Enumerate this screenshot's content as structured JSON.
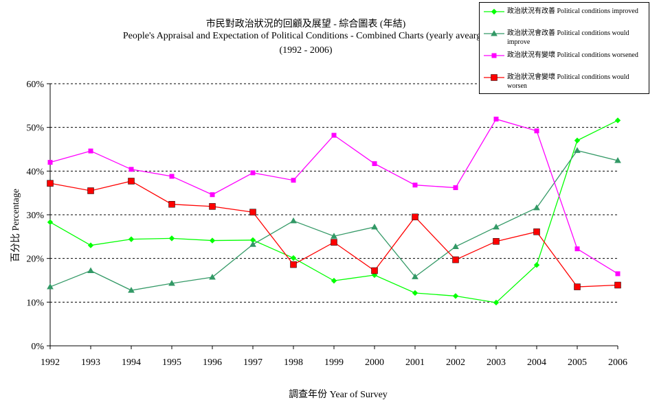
{
  "chart_data": {
    "type": "line",
    "title": "市民對政治狀況的回顧及展望 - 綜合圖表 (年結)",
    "subtitle": "People's Appraisal and Expectation of Political Conditions - Combined Charts  (yearly avearge)",
    "subtitle2": "(1992 - 2006)",
    "xlabel": "調查年份 Year of Survey",
    "ylabel": "百分比 Percentage",
    "x": [
      "1992",
      "1993",
      "1994",
      "1995",
      "1996",
      "1997",
      "1998",
      "1999",
      "2000",
      "2001",
      "2002",
      "2003",
      "2004",
      "2005",
      "2006"
    ],
    "ylim": [
      0,
      60
    ],
    "yticks": [
      "0%",
      "10%",
      "20%",
      "30%",
      "40%",
      "50%",
      "60%"
    ],
    "grid": true,
    "legend_position": "top-right",
    "series": [
      {
        "name": "政治狀況有改善 Political conditions improved",
        "color": "#00ff00",
        "marker": "diamond",
        "values": [
          28.3,
          23.0,
          24.4,
          24.6,
          24.1,
          24.2,
          20.1,
          14.9,
          16.2,
          12.1,
          11.4,
          9.9,
          18.5,
          47.0,
          51.6
        ]
      },
      {
        "name": "政治狀況會改善 Political conditions would improve",
        "color": "#339966",
        "marker": "triangle",
        "values": [
          13.5,
          17.2,
          12.7,
          14.3,
          15.7,
          23.2,
          28.6,
          25.1,
          27.2,
          15.8,
          22.7,
          27.2,
          31.6,
          44.7,
          42.4
        ]
      },
      {
        "name": "政治狀況有變壞 Political conditions worsened",
        "color": "#ff00ff",
        "marker": "square-small",
        "values": [
          42.0,
          44.6,
          40.4,
          38.8,
          34.6,
          39.6,
          37.9,
          48.2,
          41.7,
          36.8,
          36.2,
          51.9,
          49.2,
          22.2,
          16.5
        ]
      },
      {
        "name": "政治狀況會變壞 Political conditions would worsen",
        "color": "#ff0000",
        "marker": "square-large",
        "values": [
          37.2,
          35.5,
          37.7,
          32.4,
          31.9,
          30.6,
          18.6,
          23.7,
          17.2,
          29.5,
          19.7,
          23.9,
          26.1,
          13.5,
          13.9
        ]
      }
    ]
  }
}
